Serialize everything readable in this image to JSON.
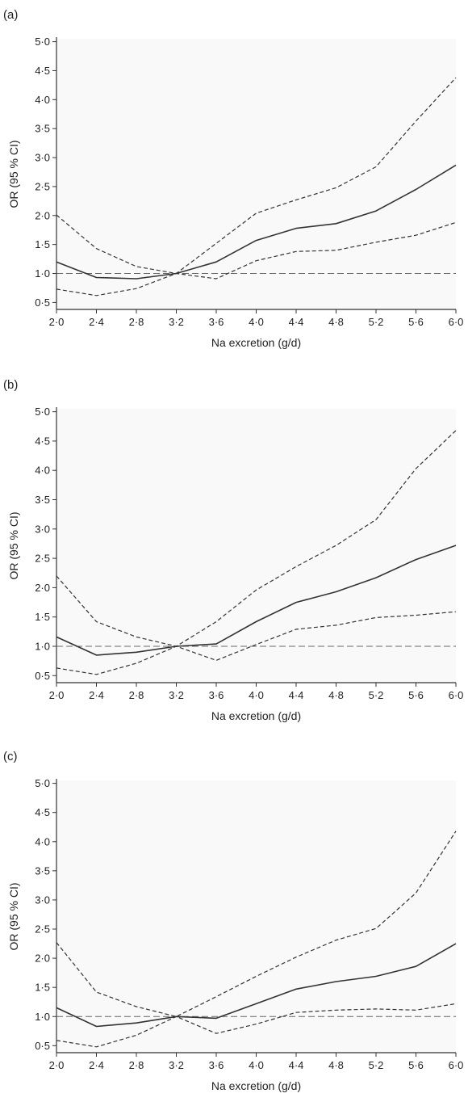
{
  "chart_data": [
    {
      "type": "line",
      "panel_label": "(a)",
      "xlabel": "Na excretion (g/d)",
      "ylabel": "OR (95 % CI)",
      "x": [
        2.0,
        2.4,
        2.8,
        3.2,
        3.6,
        4.0,
        4.4,
        4.8,
        5.2,
        5.6,
        6.0
      ],
      "x_tick_labels": [
        "2·0",
        "2·4",
        "2·8",
        "3·2",
        "3·6",
        "4·0",
        "4·4",
        "4·8",
        "5·2",
        "5·6",
        "6·0"
      ],
      "y_ticks": [
        0.5,
        1.0,
        1.5,
        2.0,
        2.5,
        3.0,
        3.5,
        4.0,
        4.5,
        5.0
      ],
      "y_tick_labels": [
        "0·5",
        "1·0",
        "1·5",
        "2·0",
        "2·5",
        "3·0",
        "3·5",
        "4·0",
        "4·5",
        "5·0"
      ],
      "xlim": [
        2.0,
        6.0
      ],
      "ylim": [
        0.38,
        5.05
      ],
      "reference_line": 1.0,
      "series": [
        {
          "style": "solid",
          "values": [
            1.2,
            0.93,
            0.91,
            1.0,
            1.2,
            1.57,
            1.78,
            1.86,
            2.08,
            2.45,
            2.87
          ]
        },
        {
          "style": "dashed",
          "values": [
            2.01,
            1.43,
            1.12,
            1.0,
            1.52,
            2.04,
            2.27,
            2.48,
            2.84,
            3.63,
            4.38
          ]
        },
        {
          "style": "dashed",
          "values": [
            0.73,
            0.62,
            0.74,
            1.0,
            0.91,
            1.22,
            1.38,
            1.4,
            1.54,
            1.66,
            1.88
          ]
        }
      ]
    },
    {
      "type": "line",
      "panel_label": "(b)",
      "xlabel": "Na excretion (g/d)",
      "ylabel": "OR (95 % CI)",
      "x": [
        2.0,
        2.4,
        2.8,
        3.2,
        3.6,
        4.0,
        4.4,
        4.8,
        5.2,
        5.6,
        6.0
      ],
      "x_tick_labels": [
        "2·0",
        "2·4",
        "2·8",
        "3·2",
        "3·6",
        "4·0",
        "4·4",
        "4·8",
        "5·2",
        "5·6",
        "6·0"
      ],
      "y_ticks": [
        0.5,
        1.0,
        1.5,
        2.0,
        2.5,
        3.0,
        3.5,
        4.0,
        4.5,
        5.0
      ],
      "y_tick_labels": [
        "0·5",
        "1·0",
        "1·5",
        "2·0",
        "2·5",
        "3·0",
        "3·5",
        "4·0",
        "4·5",
        "5·0"
      ],
      "xlim": [
        2.0,
        6.0
      ],
      "ylim": [
        0.38,
        5.05
      ],
      "reference_line": 1.0,
      "series": [
        {
          "style": "solid",
          "values": [
            1.16,
            0.85,
            0.9,
            1.0,
            1.04,
            1.42,
            1.75,
            1.93,
            2.17,
            2.48,
            2.72
          ]
        },
        {
          "style": "dashed",
          "values": [
            2.2,
            1.42,
            1.16,
            1.0,
            1.42,
            1.96,
            2.36,
            2.72,
            3.16,
            4.03,
            4.68
          ]
        },
        {
          "style": "dashed",
          "values": [
            0.63,
            0.52,
            0.71,
            1.0,
            0.76,
            1.03,
            1.29,
            1.36,
            1.49,
            1.53,
            1.59
          ]
        }
      ]
    },
    {
      "type": "line",
      "panel_label": "(c)",
      "xlabel": "Na excretion (g/d)",
      "ylabel": "OR (95 % CI)",
      "x": [
        2.0,
        2.4,
        2.8,
        3.2,
        3.6,
        4.0,
        4.4,
        4.8,
        5.2,
        5.6,
        6.0
      ],
      "x_tick_labels": [
        "2·0",
        "2·4",
        "2·8",
        "3·2",
        "3·6",
        "4·0",
        "4·4",
        "4·8",
        "5·2",
        "5·6",
        "6·0"
      ],
      "y_ticks": [
        0.5,
        1.0,
        1.5,
        2.0,
        2.5,
        3.0,
        3.5,
        4.0,
        4.5,
        5.0
      ],
      "y_tick_labels": [
        "0·5",
        "1·0",
        "1·5",
        "2·0",
        "2·5",
        "3·0",
        "3·5",
        "4·0",
        "4·5",
        "5·0"
      ],
      "xlim": [
        2.0,
        6.0
      ],
      "ylim": [
        0.38,
        5.05
      ],
      "reference_line": 1.0,
      "series": [
        {
          "style": "solid",
          "values": [
            1.15,
            0.83,
            0.89,
            1.0,
            0.97,
            1.22,
            1.47,
            1.6,
            1.69,
            1.86,
            2.25
          ]
        },
        {
          "style": "dashed",
          "values": [
            2.27,
            1.42,
            1.17,
            1.0,
            1.34,
            1.69,
            2.02,
            2.31,
            2.51,
            3.12,
            4.18
          ]
        },
        {
          "style": "dashed",
          "values": [
            0.59,
            0.48,
            0.68,
            1.0,
            0.71,
            0.87,
            1.07,
            1.11,
            1.13,
            1.11,
            1.22
          ]
        }
      ]
    }
  ],
  "colors": {
    "line": "#333333",
    "reference": "#666666",
    "axis": "#333333",
    "text": "#222222"
  }
}
